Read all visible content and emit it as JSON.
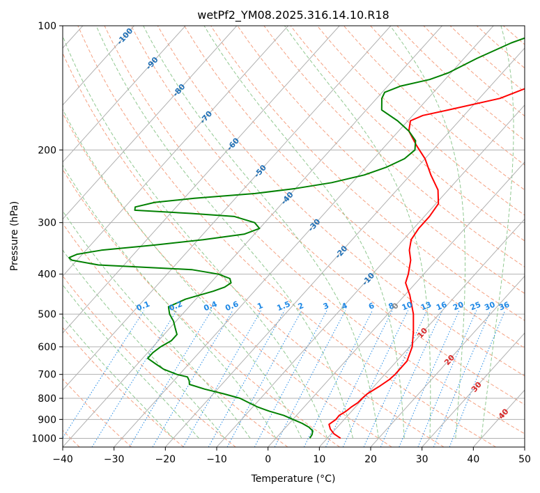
{
  "chart_data": {
    "type": "line",
    "title": "wetPf2_YM08.2025.316.14.10.R18",
    "xlabel": "Temperature (°C)",
    "ylabel": "Pressure (hPa)",
    "xlim": [
      -40,
      50
    ],
    "ylim": [
      1050,
      100
    ],
    "y_scale": "log",
    "skew": "skew-T",
    "grid": true,
    "x_ticks": [
      -40,
      -30,
      -20,
      -10,
      0,
      10,
      20,
      30,
      40,
      50
    ],
    "y_ticks": [
      100,
      200,
      300,
      400,
      500,
      600,
      700,
      800,
      900,
      1000
    ],
    "isotherm_labels": [
      -100,
      -90,
      -80,
      -70,
      -60,
      -50,
      -40,
      -30,
      -20,
      -10,
      0,
      10,
      20,
      30,
      40
    ],
    "mixing_ratio_labels": [
      "0.1",
      "0.2",
      "0.4",
      "0.6",
      "1",
      "1.5",
      "2",
      "3",
      "4",
      "6",
      "8",
      "10",
      "13",
      "16",
      "20",
      "25",
      "30",
      "36"
    ],
    "colors": {
      "temperature": "#ff0000",
      "dewpoint": "#008000",
      "isotherm": "#b0b0b0",
      "dry_adiabat": "#f5a080",
      "moist_adiabat": "#90c890",
      "mixing_ratio": "#1e88e5",
      "isotherm_label_cold": "#1f6fb5",
      "isotherm_label_warm": "#d62728"
    },
    "series": [
      {
        "role": "temperature",
        "points": [
          [
            1000,
            12.6
          ],
          [
            975,
            10.5
          ],
          [
            950,
            9.0
          ],
          [
            925,
            7.9
          ],
          [
            900,
            8.4
          ],
          [
            880,
            8.3
          ],
          [
            860,
            8.9
          ],
          [
            840,
            9.2
          ],
          [
            820,
            9.7
          ],
          [
            800,
            9.8
          ],
          [
            780,
            10.0
          ],
          [
            750,
            11.0
          ],
          [
            720,
            11.8
          ],
          [
            700,
            12.0
          ],
          [
            650,
            12.0
          ],
          [
            600,
            10.5
          ],
          [
            550,
            8.0
          ],
          [
            500,
            5.0
          ],
          [
            450,
            1.0
          ],
          [
            420,
            -2.0
          ],
          [
            400,
            -3.0
          ],
          [
            370,
            -5.0
          ],
          [
            350,
            -7.0
          ],
          [
            330,
            -8.5
          ],
          [
            310,
            -9.0
          ],
          [
            290,
            -9.0
          ],
          [
            270,
            -9.5
          ],
          [
            250,
            -12.0
          ],
          [
            230,
            -16.0
          ],
          [
            210,
            -20.0
          ],
          [
            195,
            -24.0
          ],
          [
            180,
            -28.0
          ],
          [
            170,
            -29.5
          ],
          [
            165,
            -28.0
          ],
          [
            160,
            -24.0
          ],
          [
            150,
            -16.0
          ],
          [
            140,
            -12.0
          ],
          [
            130,
            -10.0
          ],
          [
            120,
            -9.5
          ],
          [
            115,
            -6.5
          ],
          [
            108,
            -1.0
          ],
          [
            100,
            6.0
          ]
        ]
      },
      {
        "role": "dewpoint",
        "points": [
          [
            1000,
            6.6
          ],
          [
            980,
            6.4
          ],
          [
            960,
            5.9
          ],
          [
            940,
            4.5
          ],
          [
            920,
            2.5
          ],
          [
            900,
            0.0
          ],
          [
            880,
            -2.5
          ],
          [
            860,
            -6.0
          ],
          [
            840,
            -9.0
          ],
          [
            820,
            -11.5
          ],
          [
            800,
            -14.0
          ],
          [
            780,
            -18.0
          ],
          [
            760,
            -22.5
          ],
          [
            740,
            -26.3
          ],
          [
            725,
            -27.0
          ],
          [
            710,
            -28.0
          ],
          [
            700,
            -30.5
          ],
          [
            680,
            -34.0
          ],
          [
            660,
            -36.5
          ],
          [
            640,
            -39.0
          ],
          [
            620,
            -39.0
          ],
          [
            600,
            -38.5
          ],
          [
            580,
            -37.5
          ],
          [
            560,
            -37.5
          ],
          [
            540,
            -39.0
          ],
          [
            520,
            -40.5
          ],
          [
            500,
            -42.5
          ],
          [
            480,
            -44.0
          ],
          [
            460,
            -42.0
          ],
          [
            440,
            -38.0
          ],
          [
            430,
            -36.5
          ],
          [
            420,
            -36.0
          ],
          [
            410,
            -37.0
          ],
          [
            400,
            -40.0
          ],
          [
            390,
            -46.0
          ],
          [
            380,
            -65.0
          ],
          [
            370,
            -71.0
          ],
          [
            365,
            -72.0
          ],
          [
            358,
            -71.0
          ],
          [
            350,
            -67.0
          ],
          [
            340,
            -57.5
          ],
          [
            330,
            -49.0
          ],
          [
            320,
            -42.0
          ],
          [
            310,
            -40.0
          ],
          [
            300,
            -42.0
          ],
          [
            290,
            -47.0
          ],
          [
            285,
            -56.0
          ],
          [
            280,
            -67.5
          ],
          [
            275,
            -68.0
          ],
          [
            268,
            -65.0
          ],
          [
            262,
            -58.0
          ],
          [
            255,
            -47.0
          ],
          [
            248,
            -40.0
          ],
          [
            240,
            -34.0
          ],
          [
            230,
            -29.0
          ],
          [
            220,
            -26.0
          ],
          [
            210,
            -24.0
          ],
          [
            200,
            -23.5
          ],
          [
            190,
            -25.0
          ],
          [
            180,
            -28.0
          ],
          [
            170,
            -32.0
          ],
          [
            160,
            -37.0
          ],
          [
            150,
            -39.0
          ],
          [
            145,
            -39.5
          ],
          [
            140,
            -37.5
          ],
          [
            135,
            -33.0
          ],
          [
            130,
            -30.5
          ],
          [
            120,
            -27.5
          ],
          [
            110,
            -23.5
          ],
          [
            105,
            -20.5
          ],
          [
            100,
            -17.0
          ]
        ]
      }
    ]
  }
}
